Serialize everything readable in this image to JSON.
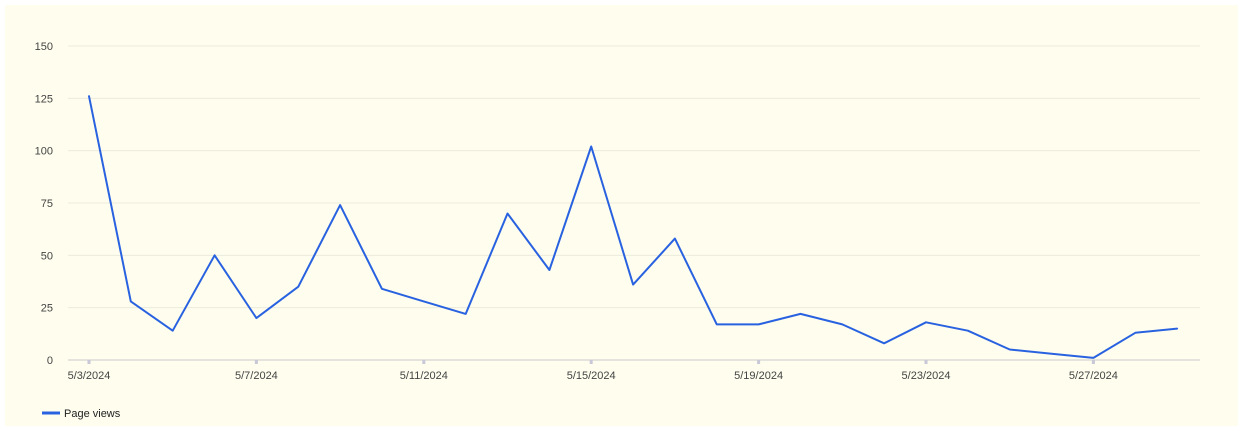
{
  "chart_data": {
    "type": "line",
    "x": [
      "5/3/2024",
      "5/4/2024",
      "5/5/2024",
      "5/6/2024",
      "5/7/2024",
      "5/8/2024",
      "5/9/2024",
      "5/10/2024",
      "5/11/2024",
      "5/12/2024",
      "5/13/2024",
      "5/14/2024",
      "5/15/2024",
      "5/16/2024",
      "5/17/2024",
      "5/18/2024",
      "5/19/2024",
      "5/20/2024",
      "5/21/2024",
      "5/22/2024",
      "5/23/2024",
      "5/24/2024",
      "5/25/2024",
      "5/26/2024",
      "5/27/2024",
      "5/28/2024",
      "5/29/2024"
    ],
    "x_tick_labels": [
      "5/3/2024",
      "5/7/2024",
      "5/11/2024",
      "5/15/2024",
      "5/19/2024",
      "5/23/2024",
      "5/27/2024"
    ],
    "y_ticks": [
      0,
      25,
      50,
      75,
      100,
      125,
      150
    ],
    "ylim": [
      0,
      150
    ],
    "series": [
      {
        "name": "Page views",
        "color": "#2962e0",
        "values": [
          126,
          28,
          14,
          50,
          20,
          35,
          74,
          34,
          28,
          22,
          70,
          43,
          102,
          36,
          58,
          17,
          17,
          22,
          17,
          8,
          18,
          14,
          5,
          3,
          1,
          13,
          15
        ]
      }
    ],
    "grid": true,
    "legend": "bottom-left",
    "title": "",
    "xlabel": "",
    "ylabel": ""
  }
}
